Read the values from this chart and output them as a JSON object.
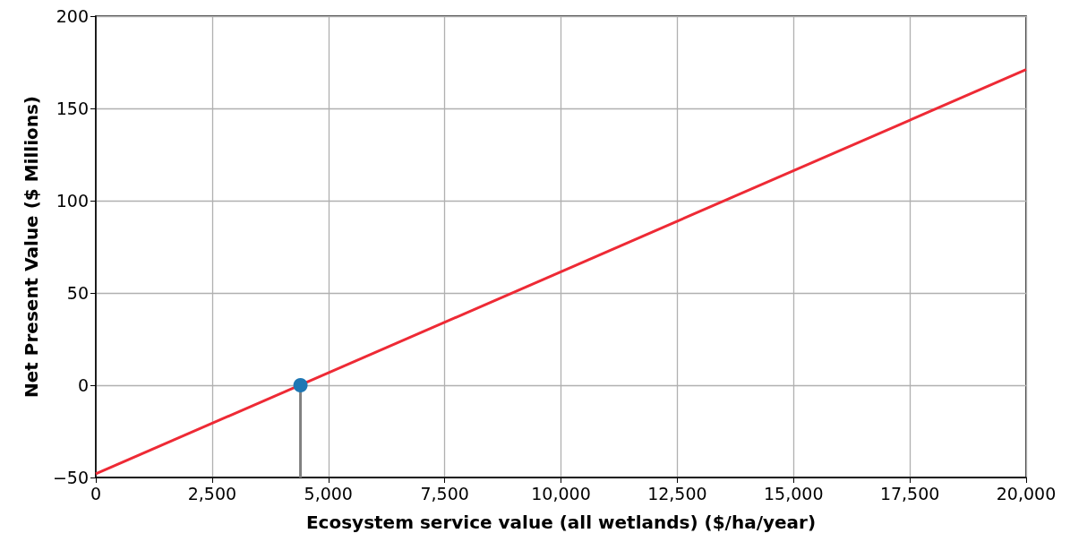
{
  "chart_data": {
    "type": "line",
    "xlabel": "Ecosystem service value (all wetlands) ($/ha/year)",
    "ylabel": "Net Present Value ($ Millions)",
    "xlim": [
      0,
      20000
    ],
    "ylim": [
      -50,
      200
    ],
    "xticks": [
      0,
      {
        "value": 2500,
        "label": "2,500"
      },
      {
        "value": 5000,
        "label": "5,000"
      },
      {
        "value": 7500,
        "label": "7,500"
      },
      {
        "value": 10000,
        "label": "10,000"
      },
      {
        "value": 12500,
        "label": "12,500"
      },
      {
        "value": 15000,
        "label": "15,000"
      },
      {
        "value": 17500,
        "label": "17,500"
      },
      {
        "value": 20000,
        "label": "20,000"
      }
    ],
    "yticks": [
      {
        "value": -50,
        "label": "−50"
      },
      0,
      50,
      100,
      150,
      200
    ],
    "grid": true,
    "marker": "none",
    "line_style": "solid",
    "series": [
      {
        "color": "#ee2a35",
        "x": [
          0,
          20000
        ],
        "values": [
          -48,
          171
        ]
      },
      {
        "color": "#808080",
        "x": [
          4400,
          4400
        ],
        "values": [
          -50,
          0
        ]
      },
      {
        "type": "scatter",
        "color": "#1f77b4",
        "marker": "circle",
        "x": [
          4400
        ],
        "values": [
          0
        ]
      }
    ]
  }
}
